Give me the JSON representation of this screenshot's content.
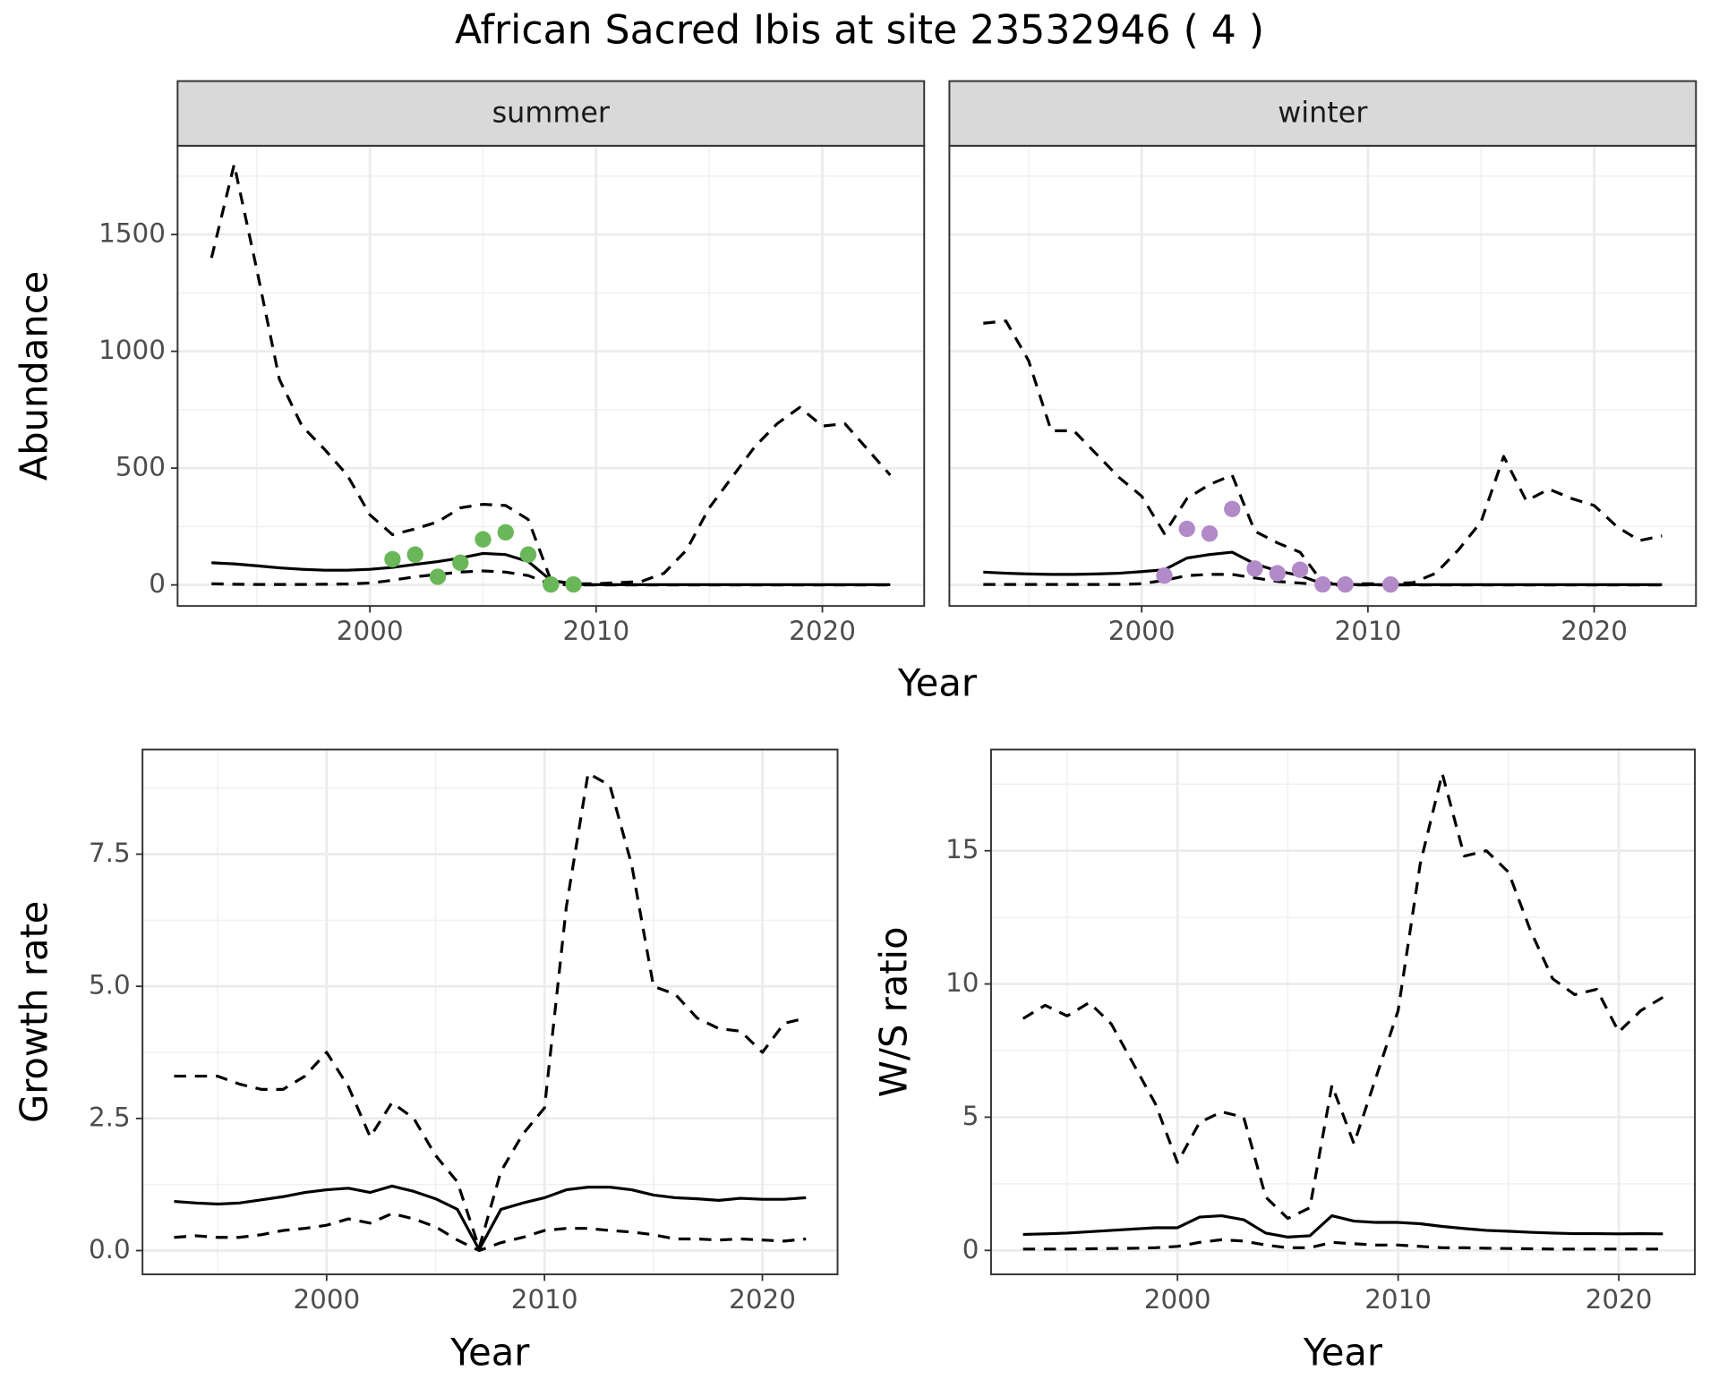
{
  "title": "African Sacred Ibis at site 23532946 ( 4 )",
  "chart_data": [
    {
      "type": "line",
      "xlabel": "Year",
      "ylabel": "Abundance",
      "x": [
        1993,
        1994,
        1995,
        1996,
        1997,
        1998,
        1999,
        2000,
        2001,
        2002,
        2003,
        2004,
        2005,
        2006,
        2007,
        2008,
        2009,
        2010,
        2011,
        2012,
        2013,
        2014,
        2015,
        2016,
        2017,
        2018,
        2019,
        2020,
        2021,
        2022,
        2023
      ],
      "xlim": [
        1991.5,
        2024.5
      ],
      "xticks": [
        2000,
        2010,
        2020
      ],
      "ylim": [
        -90,
        1880
      ],
      "yticks": [
        0,
        500,
        1000,
        1500
      ],
      "grid": true,
      "facets": [
        {
          "label": "summer",
          "series": [
            {
              "color": "#000000",
              "dashed": true,
              "values": [
                1400,
                1800,
                1350,
                880,
                680,
                580,
                470,
                300,
                215,
                240,
                270,
                330,
                345,
                340,
                280,
                20,
                5,
                5,
                10,
                15,
                50,
                150,
                330,
                460,
                590,
                690,
                760,
                680,
                690,
                580,
                470
              ]
            },
            {
              "color": "#000000",
              "dashed": false,
              "values": [
                95,
                90,
                82,
                73,
                67,
                63,
                63,
                67,
                75,
                88,
                100,
                115,
                135,
                130,
                100,
                20,
                2,
                1,
                1,
                1,
                1,
                1,
                1,
                1,
                1,
                1,
                1,
                1,
                1,
                1,
                1
              ]
            },
            {
              "color": "#000000",
              "dashed": true,
              "values": [
                5,
                3,
                2,
                2,
                2,
                3,
                4,
                8,
                20,
                35,
                45,
                55,
                60,
                55,
                40,
                2,
                0,
                0,
                0,
                0,
                0,
                0,
                0,
                0,
                0,
                0,
                0,
                0,
                0,
                0,
                0
              ]
            }
          ],
          "points": {
            "color": "#6ab759",
            "x": [
              2001,
              2002,
              2003,
              2004,
              2005,
              2006,
              2007,
              2008,
              2009
            ],
            "values": [
              110,
              130,
              35,
              95,
              195,
              225,
              130,
              2,
              2
            ]
          }
        },
        {
          "label": "winter",
          "series": [
            {
              "color": "#000000",
              "dashed": true,
              "values": [
                1120,
                1130,
                960,
                660,
                660,
                560,
                460,
                380,
                220,
                370,
                430,
                470,
                230,
                180,
                140,
                10,
                5,
                5,
                5,
                10,
                50,
                150,
                270,
                550,
                360,
                410,
                370,
                340,
                250,
                190,
                210
              ]
            },
            {
              "color": "#000000",
              "dashed": false,
              "values": [
                55,
                50,
                47,
                45,
                45,
                47,
                50,
                57,
                65,
                115,
                130,
                140,
                90,
                60,
                40,
                5,
                2,
                1,
                1,
                1,
                1,
                1,
                1,
                1,
                1,
                1,
                1,
                1,
                1,
                1,
                1
              ]
            },
            {
              "color": "#000000",
              "dashed": true,
              "values": [
                2,
                2,
                2,
                2,
                2,
                2,
                2,
                5,
                20,
                40,
                45,
                45,
                30,
                15,
                8,
                0,
                0,
                0,
                0,
                0,
                0,
                0,
                0,
                0,
                0,
                0,
                0,
                0,
                0,
                0,
                0
              ]
            }
          ],
          "points": {
            "color": "#b28ac8",
            "x": [
              2001,
              2002,
              2003,
              2004,
              2005,
              2006,
              2007,
              2008,
              2009,
              2011
            ],
            "values": [
              40,
              240,
              220,
              325,
              70,
              50,
              65,
              2,
              2,
              2
            ]
          }
        }
      ]
    },
    {
      "type": "line",
      "xlabel": "Year",
      "ylabel": "Growth rate",
      "x": [
        1993,
        1994,
        1995,
        1996,
        1997,
        1998,
        1999,
        2000,
        2001,
        2002,
        2003,
        2004,
        2005,
        2006,
        2007,
        2008,
        2009,
        2010,
        2011,
        2012,
        2013,
        2014,
        2015,
        2016,
        2017,
        2018,
        2019,
        2020,
        2021,
        2022
      ],
      "xlim": [
        1991.55,
        2023.45
      ],
      "xticks": [
        2000,
        2010,
        2020
      ],
      "ylim": [
        -0.45,
        9.48
      ],
      "yticks": [
        {
          "value": 0,
          "label": "0.0"
        },
        2.5,
        {
          "value": 5,
          "label": "5.0"
        },
        7.5
      ],
      "grid": true,
      "series": [
        {
          "color": "#000000",
          "dashed": true,
          "values": [
            3.3,
            3.3,
            3.3,
            3.15,
            3.05,
            3.05,
            3.3,
            3.75,
            3.1,
            2.15,
            2.8,
            2.5,
            1.8,
            1.3,
            0.05,
            1.5,
            2.2,
            2.7,
            6.5,
            9.03,
            8.8,
            7.3,
            5.0,
            4.85,
            4.4,
            4.2,
            4.15,
            3.75,
            4.3,
            4.4
          ]
        },
        {
          "color": "#000000",
          "dashed": false,
          "values": [
            0.93,
            0.9,
            0.88,
            0.9,
            0.96,
            1.02,
            1.1,
            1.15,
            1.18,
            1.1,
            1.22,
            1.12,
            0.98,
            0.78,
            0.02,
            0.78,
            0.9,
            1.0,
            1.15,
            1.2,
            1.2,
            1.15,
            1.05,
            1.0,
            0.98,
            0.95,
            0.99,
            0.97,
            0.97,
            1.0
          ]
        },
        {
          "color": "#000000",
          "dashed": true,
          "values": [
            0.25,
            0.28,
            0.25,
            0.25,
            0.3,
            0.38,
            0.42,
            0.48,
            0.6,
            0.52,
            0.7,
            0.6,
            0.45,
            0.2,
            0.0,
            0.15,
            0.25,
            0.38,
            0.42,
            0.42,
            0.38,
            0.35,
            0.3,
            0.22,
            0.22,
            0.2,
            0.22,
            0.2,
            0.18,
            0.22
          ]
        }
      ]
    },
    {
      "type": "line",
      "xlabel": "Year",
      "ylabel": "W/S ratio",
      "x": [
        1993,
        1994,
        1995,
        1996,
        1997,
        1998,
        1999,
        2000,
        2001,
        2002,
        2003,
        2004,
        2005,
        2006,
        2007,
        2008,
        2009,
        2010,
        2011,
        2012,
        2013,
        2014,
        2015,
        2016,
        2017,
        2018,
        2019,
        2020,
        2021,
        2022
      ],
      "xlim": [
        1991.55,
        2023.45
      ],
      "xticks": [
        2000,
        2010,
        2020
      ],
      "ylim": [
        -0.9,
        18.8
      ],
      "yticks": [
        0,
        5,
        10,
        15
      ],
      "grid": true,
      "series": [
        {
          "color": "#000000",
          "dashed": true,
          "values": [
            8.7,
            9.2,
            8.8,
            9.3,
            8.5,
            7.0,
            5.5,
            3.3,
            4.8,
            5.2,
            5.0,
            2.0,
            1.2,
            1.6,
            6.2,
            4.0,
            6.5,
            9.0,
            14.5,
            17.9,
            14.8,
            15.0,
            14.2,
            12.0,
            10.2,
            9.6,
            9.8,
            8.2,
            9.0,
            9.5
          ]
        },
        {
          "color": "#000000",
          "dashed": false,
          "values": [
            0.6,
            0.62,
            0.65,
            0.7,
            0.75,
            0.8,
            0.85,
            0.85,
            1.25,
            1.3,
            1.15,
            0.65,
            0.5,
            0.55,
            1.3,
            1.1,
            1.05,
            1.05,
            1.0,
            0.9,
            0.82,
            0.75,
            0.72,
            0.68,
            0.65,
            0.63,
            0.63,
            0.62,
            0.63,
            0.62
          ]
        },
        {
          "color": "#000000",
          "dashed": true,
          "values": [
            0.05,
            0.05,
            0.05,
            0.06,
            0.07,
            0.08,
            0.1,
            0.15,
            0.3,
            0.4,
            0.35,
            0.2,
            0.1,
            0.1,
            0.3,
            0.25,
            0.2,
            0.2,
            0.15,
            0.1,
            0.1,
            0.08,
            0.07,
            0.06,
            0.05,
            0.05,
            0.05,
            0.05,
            0.05,
            0.05
          ]
        }
      ]
    }
  ]
}
